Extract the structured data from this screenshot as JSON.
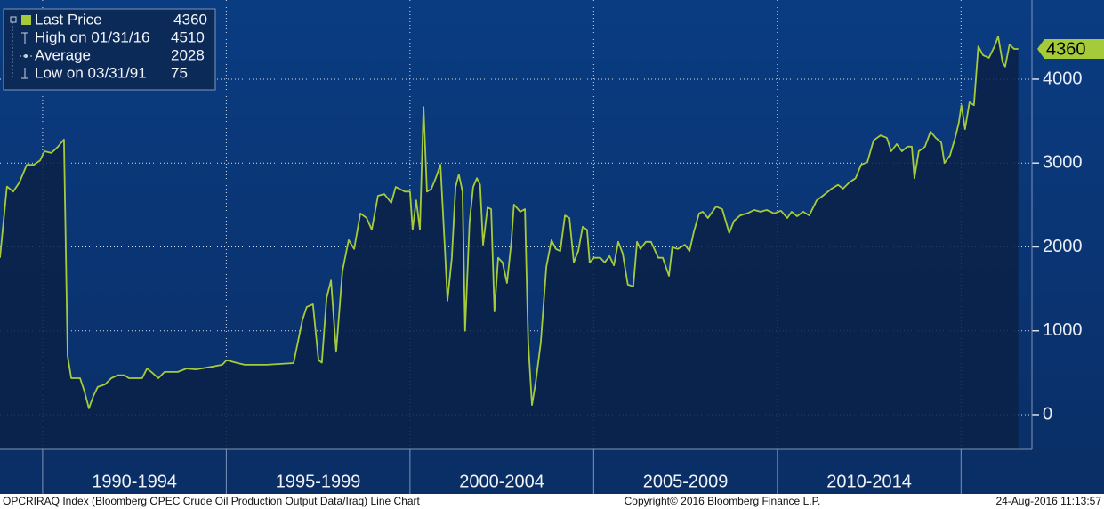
{
  "chart_data": {
    "type": "line",
    "series": [
      {
        "name": "Last Price",
        "color": "#a6cb3a",
        "x": [
          1988.84,
          1989.03,
          1989.2,
          1989.37,
          1989.57,
          1989.76,
          1989.93,
          1990.05,
          1990.24,
          1990.41,
          1990.58,
          1990.68,
          1990.78,
          1991.02,
          1991.14,
          1991.26,
          1991.38,
          1991.5,
          1991.7,
          1991.87,
          1992.04,
          1992.23,
          1992.35,
          1992.71,
          1992.84,
          1992.96,
          1993.15,
          1993.32,
          1993.68,
          1993.92,
          1994.17,
          1994.65,
          1994.89,
          1995.01,
          1995.26,
          1995.5,
          1996.1,
          1996.83,
          1997.07,
          1997.19,
          1997.36,
          1997.51,
          1997.6,
          1997.73,
          1997.85,
          1997.99,
          1998.16,
          1998.33,
          1998.48,
          1998.65,
          1998.82,
          1998.96,
          1999.13,
          1999.3,
          1999.49,
          1999.61,
          1999.86,
          2000.0,
          2000.07,
          2000.17,
          2000.27,
          2000.37,
          2000.46,
          2000.58,
          2000.7,
          2000.83,
          2000.95,
          2001.02,
          2001.14,
          2001.24,
          2001.33,
          2001.43,
          2001.5,
          2001.62,
          2001.72,
          2001.82,
          2001.91,
          2001.99,
          2002.11,
          2002.21,
          2002.3,
          2002.4,
          2002.52,
          2002.64,
          2002.76,
          2002.83,
          2003.0,
          2003.13,
          2003.22,
          2003.32,
          2003.42,
          2003.56,
          2003.71,
          2003.85,
          2003.97,
          2004.09,
          2004.22,
          2004.34,
          2004.46,
          2004.58,
          2004.7,
          2004.82,
          2004.89,
          2005.01,
          2005.18,
          2005.3,
          2005.43,
          2005.55,
          2005.67,
          2005.79,
          2005.93,
          2006.08,
          2006.18,
          2006.27,
          2006.42,
          2006.56,
          2006.76,
          2006.88,
          2007.05,
          2007.14,
          2007.29,
          2007.48,
          2007.61,
          2007.73,
          2007.87,
          2007.97,
          2008.11,
          2008.33,
          2008.5,
          2008.69,
          2008.82,
          2008.99,
          2009.18,
          2009.37,
          2009.54,
          2009.71,
          2009.91,
          2010.1,
          2010.27,
          2010.39,
          2010.54,
          2010.7,
          2010.87,
          2011.07,
          2011.24,
          2011.48,
          2011.65,
          2011.79,
          2011.96,
          2012.13,
          2012.28,
          2012.45,
          2012.62,
          2012.81,
          2012.98,
          2013.1,
          2013.25,
          2013.39,
          2013.54,
          2013.66,
          2013.73,
          2013.85,
          2014.02,
          2014.17,
          2014.31,
          2014.46,
          2014.55,
          2014.7,
          2014.84,
          2014.94,
          2015.01,
          2015.11,
          2015.23,
          2015.35,
          2015.47,
          2015.6,
          2015.76,
          2015.91,
          2016.01,
          2016.13,
          2016.2,
          2016.32,
          2016.44,
          2016.56
        ],
        "values": [
          1870,
          2720,
          2660,
          2770,
          2980,
          2980,
          3030,
          3140,
          3120,
          3190,
          3280,
          700,
          435,
          435,
          275,
          75,
          220,
          330,
          360,
          435,
          470,
          470,
          435,
          435,
          550,
          510,
          435,
          510,
          510,
          550,
          540,
          575,
          595,
          650,
          620,
          595,
          595,
          615,
          1125,
          1285,
          1315,
          650,
          620,
          1390,
          1600,
          750,
          1710,
          2080,
          1975,
          2400,
          2345,
          2205,
          2610,
          2630,
          2525,
          2715,
          2660,
          2660,
          2205,
          2555,
          2205,
          3670,
          2660,
          2690,
          2820,
          2980,
          1975,
          1360,
          1870,
          2715,
          2865,
          2660,
          1000,
          2290,
          2715,
          2820,
          2740,
          2025,
          2470,
          2450,
          1230,
          1870,
          1815,
          1570,
          2060,
          2505,
          2420,
          2450,
          860,
          115,
          380,
          860,
          1760,
          2080,
          1975,
          1950,
          2375,
          2345,
          1815,
          1950,
          2240,
          2205,
          1815,
          1870,
          1870,
          1815,
          1890,
          1780,
          2060,
          1920,
          1550,
          1530,
          2060,
          1975,
          2060,
          2060,
          1870,
          1870,
          1655,
          1995,
          1975,
          2025,
          1950,
          2185,
          2400,
          2420,
          2345,
          2480,
          2450,
          2165,
          2310,
          2375,
          2400,
          2440,
          2420,
          2440,
          2400,
          2430,
          2345,
          2420,
          2365,
          2420,
          2375,
          2555,
          2610,
          2695,
          2740,
          2695,
          2770,
          2820,
          2980,
          3010,
          3270,
          3330,
          3300,
          3140,
          3225,
          3140,
          3195,
          3195,
          2820,
          3140,
          3195,
          3375,
          3300,
          3245,
          3000,
          3090,
          3300,
          3480,
          3690,
          3405,
          3725,
          3690,
          4390,
          4285,
          4255,
          4390,
          4510,
          4200,
          4150,
          4415,
          4360,
          4360
        ]
      }
    ],
    "stats": [
      {
        "label": "High on 01/31/16",
        "value": 4510
      },
      {
        "label": "Average",
        "value": 2028
      },
      {
        "label": "Low on 03/31/91",
        "value": 75
      }
    ],
    "xlim": [
      1988.84,
      2016.93
    ],
    "xticks": [
      1990,
      1995,
      2000,
      2005,
      2010,
      2015
    ],
    "xtick_spans": [
      "1990-1994",
      "1995-1999",
      "2000-2004",
      "2005-2009",
      "2010-2014"
    ],
    "ylim": [
      -414,
      4944
    ],
    "yticks": [
      0,
      1000,
      2000,
      3000,
      4000
    ],
    "grid": true,
    "footer": {
      "left": "OPCRIRAQ Index (Bloomberg OPEC Crude Oil Production Output Data/Iraq) Line Chart",
      "center": "Copyright© 2016 Bloomberg Finance L.P.",
      "right": "24-Aug-2016 11:13:57"
    }
  }
}
